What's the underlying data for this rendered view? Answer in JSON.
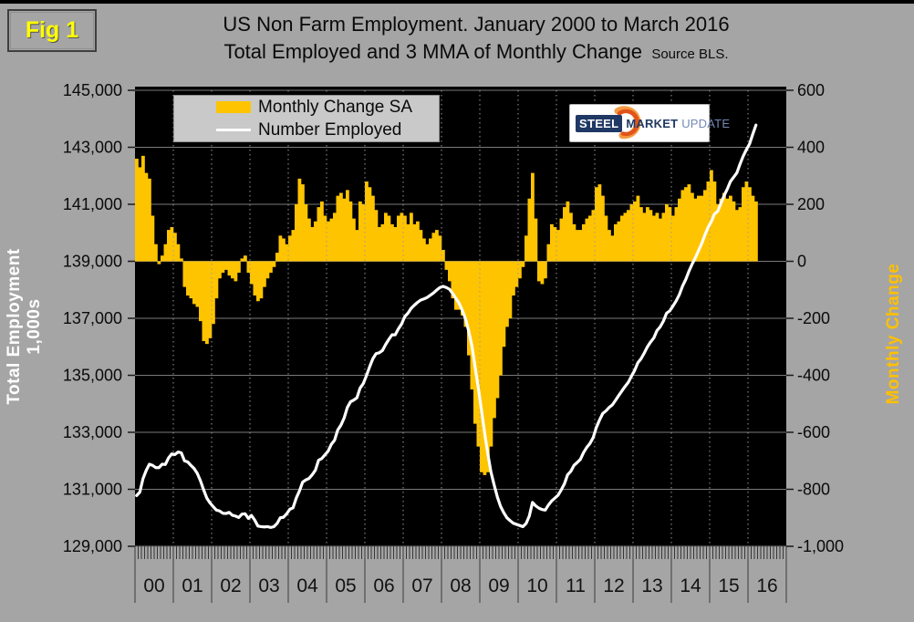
{
  "header": {
    "fig_label": "Fig 1",
    "title_line1": "US Non Farm Employment. January 2000 to March 2016",
    "title_line2": "Total Employed and 3 MMA of Monthly Change",
    "source_note": "Source BLS."
  },
  "logo": {
    "steel": "STEEL",
    "market": "MARKET",
    "update": "UPDATE"
  },
  "legend": {
    "items": [
      {
        "label": "Monthly Change SA",
        "swatch": "bar",
        "color": "#FFC400"
      },
      {
        "label": "Number Employed",
        "swatch": "line",
        "color": "#FFFFFF"
      }
    ]
  },
  "colors": {
    "page_bg": "#A5A5A5",
    "plot_bg": "#000000",
    "bar": "#FFC400",
    "line": "#FFFFFF",
    "left_axis_title": "#FFFFFF",
    "right_axis_title": "#FFC000",
    "fig_label": "#FFFF00",
    "gridline": "#7a7a7a",
    "year_gridline": "#9a9a9a"
  },
  "chart_data": {
    "type": "bar+line",
    "title": "US Non Farm Employment. January 2000 to March 2016",
    "subtitle": "Total Employed and 3 MMA of Monthly Change",
    "source": "BLS",
    "x_start": "2000-01",
    "x_end": "2016-03",
    "grid": "on",
    "legend_position": "top-left",
    "x_axis": {
      "year_labels": [
        "00",
        "01",
        "02",
        "03",
        "04",
        "05",
        "06",
        "07",
        "08",
        "09",
        "10",
        "11",
        "12",
        "13",
        "14",
        "15",
        "16"
      ]
    },
    "left_axis": {
      "label": "Total Employment 1,000s",
      "min": 129000,
      "max": 145000,
      "tick_step": 2000,
      "tick_labels": [
        "145,000",
        "143,000",
        "141,000",
        "139,000",
        "137,000",
        "135,000",
        "133,000",
        "131,000",
        "129,000"
      ]
    },
    "right_axis": {
      "label": "Monthly Change",
      "min": -1000,
      "max": 600,
      "tick_step": 200,
      "tick_labels": [
        "600",
        "400",
        "200",
        "0",
        "-200",
        "-400",
        "-600",
        "-800",
        "-1,000"
      ]
    },
    "series": [
      {
        "name": "Monthly Change SA",
        "type": "bar",
        "axis": "right",
        "color": "#FFC400",
        "values": [
          360,
          330,
          370,
          310,
          290,
          160,
          60,
          -10,
          20,
          60,
          110,
          120,
          100,
          60,
          10,
          -90,
          -120,
          -130,
          -150,
          -160,
          -210,
          -280,
          -290,
          -270,
          -220,
          -130,
          -60,
          -40,
          -30,
          -50,
          -60,
          -70,
          -40,
          10,
          20,
          -40,
          -80,
          -120,
          -140,
          -130,
          -90,
          -60,
          -40,
          -20,
          30,
          90,
          80,
          60,
          90,
          110,
          200,
          290,
          270,
          200,
          150,
          120,
          140,
          190,
          210,
          160,
          140,
          150,
          170,
          230,
          240,
          220,
          250,
          210,
          150,
          110,
          210,
          200,
          280,
          260,
          230,
          180,
          120,
          130,
          170,
          160,
          130,
          120,
          160,
          170,
          160,
          130,
          170,
          130,
          140,
          110,
          80,
          60,
          80,
          100,
          110,
          90,
          40,
          -30,
          -70,
          -130,
          -170,
          -170,
          -190,
          -230,
          -330,
          -450,
          -570,
          -650,
          -740,
          -750,
          -740,
          -650,
          -550,
          -480,
          -400,
          -300,
          -230,
          -200,
          -120,
          -90,
          -60,
          -20,
          90,
          220,
          310,
          150,
          -70,
          -80,
          -60,
          60,
          130,
          120,
          110,
          150,
          190,
          210,
          170,
          130,
          110,
          110,
          130,
          150,
          160,
          180,
          260,
          270,
          230,
          160,
          110,
          90,
          130,
          140,
          160,
          170,
          180,
          200,
          210,
          230,
          190,
          170,
          190,
          180,
          160,
          170,
          150,
          170,
          200,
          190,
          160,
          190,
          220,
          250,
          260,
          270,
          240,
          220,
          230,
          230,
          250,
          280,
          320,
          280,
          200,
          220,
          240,
          220,
          230,
          210,
          180,
          190,
          260,
          280,
          260,
          230,
          210
        ]
      },
      {
        "name": "Number Employed",
        "type": "line",
        "axis": "left",
        "color": "#FFFFFF",
        "values": [
          130780,
          130900,
          131370,
          131660,
          131880,
          131840,
          131760,
          131760,
          131880,
          131870,
          132100,
          132240,
          132220,
          132310,
          132280,
          132000,
          131960,
          131840,
          131730,
          131560,
          131300,
          130980,
          130690,
          130520,
          130390,
          130270,
          130240,
          130160,
          130150,
          130190,
          130090,
          130060,
          130010,
          130130,
          130140,
          129980,
          130080,
          129920,
          129710,
          129690,
          129680,
          129690,
          129660,
          129690,
          129800,
          130000,
          130020,
          130140,
          130300,
          130350,
          130690,
          130940,
          131250,
          131330,
          131380,
          131510,
          131670,
          132020,
          132080,
          132210,
          132340,
          132580,
          132720,
          133080,
          133250,
          133500,
          133870,
          134070,
          134130,
          134210,
          134550,
          134710,
          134990,
          135300,
          135580,
          135760,
          135790,
          135870,
          136080,
          136260,
          136420,
          136420,
          136630,
          136800,
          137060,
          137180,
          137350,
          137460,
          137560,
          137640,
          137680,
          137730,
          137810,
          137890,
          137990,
          138080,
          138120,
          138080,
          138020,
          137870,
          137700,
          137530,
          137280,
          136990,
          136560,
          136050,
          135310,
          134580,
          133790,
          132990,
          132250,
          131600,
          131150,
          130730,
          130400,
          130180,
          130000,
          129900,
          129810,
          129770,
          129730,
          129690,
          129800,
          130060,
          130540,
          130420,
          130340,
          130290,
          130270,
          130450,
          130590,
          130690,
          130790,
          130980,
          131190,
          131510,
          131630,
          131840,
          131940,
          132050,
          132290,
          132470,
          132610,
          132810,
          133170,
          133430,
          133660,
          133750,
          133870,
          133960,
          134120,
          134290,
          134450,
          134610,
          134750,
          134970,
          135170,
          135440,
          135580,
          135780,
          136000,
          136170,
          136310,
          136570,
          136700,
          136900,
          137180,
          137260,
          137430,
          137610,
          137830,
          138130,
          138360,
          138650,
          138900,
          139120,
          139370,
          139620,
          139920,
          140190,
          140390,
          140660,
          140750,
          141030,
          141300,
          141530,
          141800,
          141950,
          142100,
          142410,
          142690,
          142920,
          143120,
          143460,
          143780
        ]
      }
    ]
  }
}
